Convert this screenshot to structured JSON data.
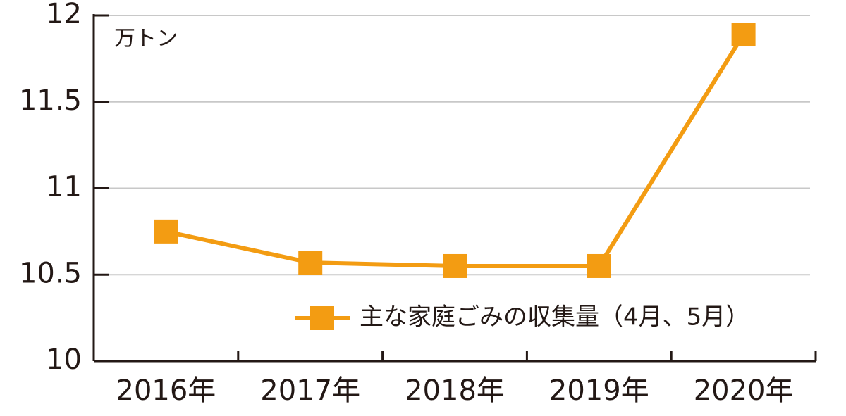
{
  "chart_data": {
    "type": "line",
    "y_unit": "万トン",
    "categories": [
      "2016年",
      "2017年",
      "2018年",
      "2019年",
      "2020年"
    ],
    "series": [
      {
        "name": "主な家庭ごみの収集量（4月、5月）",
        "color": "#f39c12",
        "values": [
          10.75,
          10.57,
          10.55,
          10.55,
          11.89
        ]
      }
    ],
    "ylim": [
      10,
      12
    ],
    "yticks": [
      10,
      10.5,
      11,
      11.5,
      12
    ],
    "grid": true
  }
}
